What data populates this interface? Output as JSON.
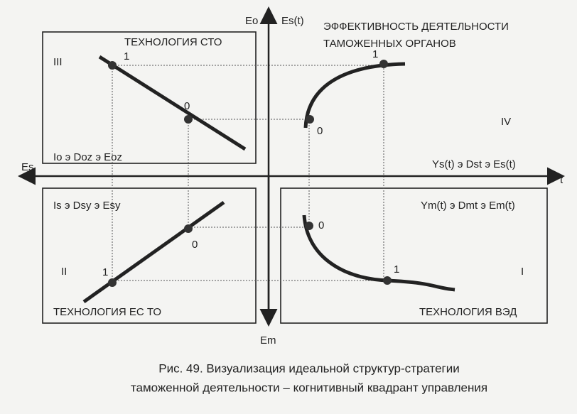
{
  "axes": {
    "eo": "Eo",
    "es_t": "Es(t)",
    "es": "Es",
    "t": "t",
    "em": "Em"
  },
  "title": {
    "line1": "ЭФФЕКТИВНОСТЬ ДЕЯТЕЛЬНОСТИ",
    "line2": "ТАМОЖЕННЫХ ОРГАНОВ"
  },
  "quadrants": [
    {
      "numeral": "III",
      "technology": "ТЕХНОЛОГИЯ СТО",
      "formula": "Io э Doz э Eoz",
      "point_labels": [
        "1",
        "0"
      ]
    },
    {
      "numeral": "IV",
      "formula": "Ys(t) э Dst э Es(t)",
      "point_labels": [
        "0",
        "1"
      ]
    },
    {
      "numeral": "II",
      "technology": "ТЕХНОЛОГИЯ ЕС ТО",
      "formula": "Is э Dsy э Esy",
      "point_labels": [
        "0",
        "1"
      ]
    },
    {
      "numeral": "I",
      "technology": "ТЕХНОЛОГИЯ ВЭД",
      "formula": "Ym(t) э Dmt э Em(t)",
      "point_labels": [
        "0",
        "1"
      ]
    }
  ],
  "caption": {
    "line1": "Рис. 49. Визуализация идеальной структур-стратегии",
    "line2": "таможенной деятельности – когнитивный квадрант управления"
  }
}
